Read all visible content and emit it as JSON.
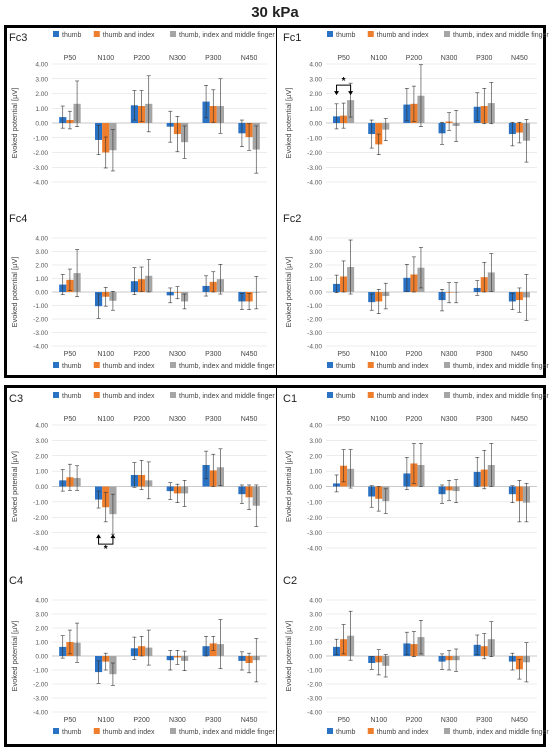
{
  "page_title": "30 kPa",
  "common": {
    "ylabel": "Evoked potential [µV]",
    "categories": [
      "P50",
      "N100",
      "P200",
      "N300",
      "P300",
      "N450"
    ],
    "y_ticks": [
      "4.00",
      "3.00",
      "2.00",
      "1.00",
      "0.00",
      "-1.00",
      "-2.00",
      "-3.00",
      "-4.00"
    ],
    "ylim": [
      -4,
      4
    ],
    "legend": [
      "thumb",
      "thumb and index",
      "thumb, index and middle finger"
    ],
    "colors": [
      "#2a72c4",
      "#ee7d2c",
      "#a5a5a5"
    ],
    "significance_marker": "*"
  },
  "chart_data": [
    {
      "type": "bar",
      "label": "Fc3",
      "series": [
        {
          "values": [
            0.4,
            -1.15,
            1.2,
            -0.25,
            1.45,
            -0.7
          ],
          "errors": [
            0.75,
            1.0,
            1.0,
            1.05,
            1.1,
            0.9
          ]
        },
        {
          "values": [
            0.2,
            -2.0,
            1.15,
            -0.75,
            1.15,
            -0.95
          ],
          "errors": [
            0.6,
            1.05,
            1.05,
            1.2,
            1.1,
            0.9
          ]
        },
        {
          "values": [
            1.3,
            -1.85,
            1.3,
            -1.3,
            1.15,
            -1.8
          ],
          "errors": [
            1.55,
            1.4,
            1.9,
            1.1,
            1.85,
            1.6
          ]
        }
      ]
    },
    {
      "type": "bar",
      "label": "Fc1",
      "significance": {
        "category": "P50",
        "from": 0,
        "to": 2
      },
      "series": [
        {
          "values": [
            0.45,
            -0.75,
            1.25,
            -0.7,
            1.1,
            -0.75
          ],
          "errors": [
            0.85,
            0.95,
            1.1,
            0.75,
            0.95,
            0.8
          ]
        },
        {
          "values": [
            0.5,
            -1.45,
            1.3,
            0.1,
            1.15,
            -0.65
          ],
          "errors": [
            0.85,
            0.7,
            1.2,
            0.6,
            1.2,
            0.7
          ]
        },
        {
          "values": [
            1.55,
            -0.45,
            1.85,
            -0.2,
            1.35,
            -1.2
          ],
          "errors": [
            1.15,
            0.75,
            2.1,
            1.05,
            1.4,
            1.45
          ]
        }
      ]
    },
    {
      "type": "bar",
      "label": "Fc4",
      "series": [
        {
          "values": [
            0.55,
            -1.05,
            0.8,
            -0.25,
            0.45,
            -0.7
          ],
          "errors": [
            0.75,
            0.9,
            1.0,
            0.55,
            0.75,
            0.6
          ]
        },
        {
          "values": [
            0.9,
            -0.35,
            0.95,
            -0.05,
            0.75,
            -0.7
          ],
          "errors": [
            0.8,
            0.7,
            0.9,
            0.45,
            0.75,
            0.6
          ]
        },
        {
          "values": [
            1.4,
            -0.65,
            1.2,
            -0.7,
            0.95,
            -0.05
          ],
          "errors": [
            1.75,
            0.7,
            1.2,
            0.55,
            1.1,
            1.2
          ]
        }
      ]
    },
    {
      "type": "bar",
      "label": "Fc2",
      "series": [
        {
          "values": [
            0.6,
            -0.75,
            1.05,
            -0.6,
            0.3,
            -0.7
          ],
          "errors": [
            0.65,
            0.6,
            1.0,
            0.8,
            0.55,
            0.6
          ]
        },
        {
          "values": [
            1.15,
            -0.7,
            1.3,
            -0.05,
            1.1,
            -0.6
          ],
          "errors": [
            1.15,
            0.9,
            1.3,
            0.75,
            1.1,
            0.9
          ]
        },
        {
          "values": [
            1.85,
            -0.3,
            1.8,
            -0.05,
            1.45,
            -0.4
          ],
          "errors": [
            2.0,
            0.95,
            1.5,
            0.75,
            1.4,
            1.7
          ]
        }
      ]
    },
    {
      "type": "bar",
      "label": "C3",
      "significance": {
        "category": "N100",
        "from": 0,
        "to": 2
      },
      "series": [
        {
          "values": [
            0.4,
            -0.85,
            0.75,
            -0.3,
            1.4,
            -0.5
          ],
          "errors": [
            0.7,
            0.55,
            0.8,
            0.55,
            0.9,
            0.6
          ]
        },
        {
          "values": [
            0.6,
            -1.35,
            0.75,
            -0.45,
            1.05,
            -0.7
          ],
          "errors": [
            0.85,
            0.95,
            0.95,
            0.6,
            1.05,
            0.8
          ]
        },
        {
          "values": [
            0.55,
            -1.8,
            0.4,
            -0.45,
            1.25,
            -1.25
          ],
          "errors": [
            0.8,
            1.3,
            1.2,
            0.85,
            1.2,
            1.35
          ]
        }
      ]
    },
    {
      "type": "bar",
      "label": "C1",
      "series": [
        {
          "values": [
            0.2,
            -0.65,
            0.85,
            -0.5,
            0.95,
            -0.5
          ],
          "errors": [
            0.55,
            0.7,
            1.05,
            0.6,
            0.95,
            0.55
          ]
        },
        {
          "values": [
            1.35,
            -0.8,
            1.5,
            -0.25,
            1.1,
            -0.95
          ],
          "errors": [
            1.05,
            0.8,
            1.3,
            0.65,
            1.25,
            1.35
          ]
        },
        {
          "values": [
            1.15,
            -0.95,
            1.4,
            -0.3,
            1.4,
            -1.05
          ],
          "errors": [
            1.25,
            0.8,
            1.4,
            0.75,
            1.4,
            1.25
          ]
        }
      ]
    },
    {
      "type": "bar",
      "label": "C4",
      "series": [
        {
          "values": [
            0.65,
            -1.15,
            0.55,
            -0.3,
            0.7,
            -0.35
          ],
          "errors": [
            0.8,
            0.8,
            0.8,
            0.7,
            0.7,
            0.65
          ]
        },
        {
          "values": [
            1.0,
            -0.4,
            0.7,
            -0.1,
            0.9,
            -0.5
          ],
          "errors": [
            0.85,
            0.6,
            0.7,
            0.5,
            0.5,
            0.7
          ]
        },
        {
          "values": [
            0.95,
            -1.3,
            0.6,
            -0.35,
            0.85,
            -0.3
          ],
          "errors": [
            1.4,
            0.8,
            1.25,
            0.7,
            1.75,
            1.55
          ]
        }
      ]
    },
    {
      "type": "bar",
      "label": "C2",
      "series": [
        {
          "values": [
            0.65,
            -0.5,
            0.9,
            -0.4,
            0.8,
            -0.4
          ],
          "errors": [
            0.55,
            0.45,
            0.8,
            0.55,
            0.7,
            0.6
          ]
        },
        {
          "values": [
            1.2,
            -0.45,
            0.85,
            -0.3,
            0.7,
            -0.95
          ],
          "errors": [
            1.05,
            0.9,
            0.9,
            0.7,
            0.9,
            0.7
          ]
        },
        {
          "values": [
            1.45,
            -0.7,
            1.35,
            -0.3,
            1.2,
            -0.45
          ],
          "errors": [
            1.75,
            0.8,
            1.2,
            0.8,
            1.25,
            1.4
          ]
        }
      ]
    }
  ]
}
